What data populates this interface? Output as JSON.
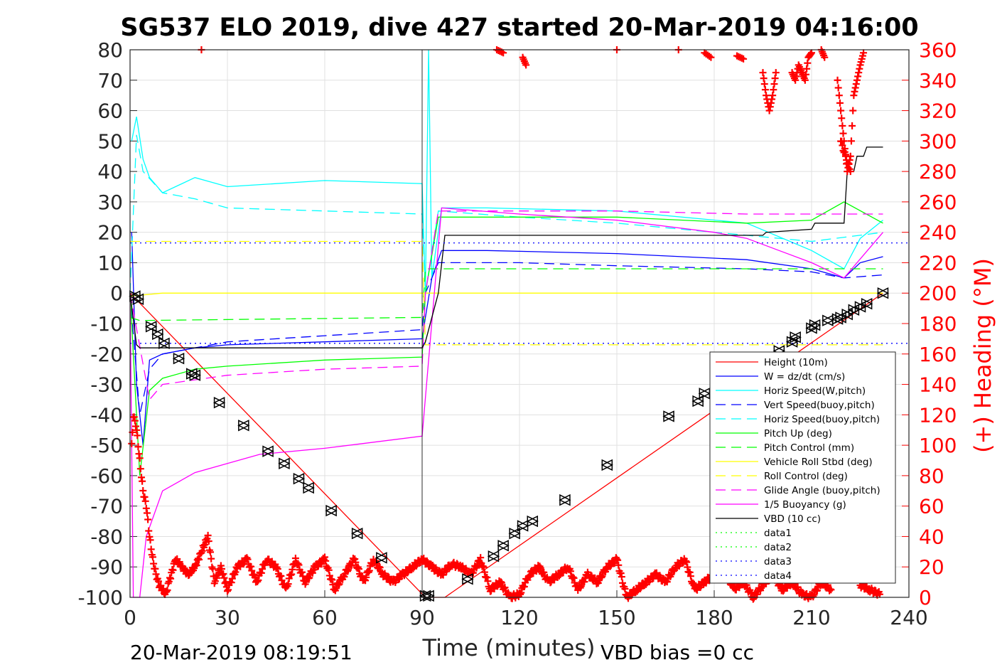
{
  "chart_data": {
    "type": "line",
    "title": "SG537 ELO 2019, dive 427 started 20-Mar-2019 04:16:00",
    "xlabel": "Time (minutes)",
    "ylabel_right": "(+) Heading (°M)",
    "footer_left": "20-Mar-2019 08:19:51",
    "footer_right": "VBD bias =0 cc",
    "xlim": [
      0,
      240
    ],
    "ylim": [
      -100,
      80
    ],
    "ylim_right": [
      0,
      360
    ],
    "xticks": [
      0,
      30,
      60,
      90,
      120,
      150,
      180,
      210,
      240
    ],
    "yticks": [
      80,
      70,
      60,
      50,
      40,
      30,
      20,
      10,
      0,
      -10,
      -20,
      -30,
      -40,
      -50,
      -60,
      -70,
      -80,
      -90,
      -100
    ],
    "yticks_right": [
      360,
      340,
      320,
      300,
      280,
      260,
      240,
      220,
      200,
      180,
      160,
      140,
      120,
      100,
      80,
      60,
      40,
      20,
      0
    ],
    "grid": true,
    "legend_position": "lower-right",
    "series": [
      {
        "name": "Height (10m)",
        "color": "#ff0000",
        "style": "solid",
        "x": [
          0,
          91,
          97,
          232
        ],
        "y": [
          0,
          -100,
          -100,
          0
        ]
      },
      {
        "name": "W = dz/dt (cm/s)",
        "color": "#0000ff",
        "style": "solid",
        "x": [
          0.5,
          2,
          4,
          6,
          10,
          20,
          30,
          60,
          90,
          91,
          93,
          96,
          110,
          150,
          190,
          210,
          220,
          225,
          232
        ],
        "y": [
          20,
          -30,
          -50,
          -22,
          -20,
          -18,
          -17,
          -16,
          -15,
          -8,
          5,
          14,
          14,
          13,
          11,
          8,
          5,
          10,
          12
        ]
      },
      {
        "name": "Horiz Speed(W,pitch)",
        "color": "#00ffff",
        "style": "solid",
        "x": [
          0.5,
          2,
          4,
          6,
          10,
          20,
          30,
          60,
          90,
          91,
          92,
          93,
          96,
          110,
          150,
          190,
          210,
          220,
          225,
          232
        ],
        "y": [
          50,
          58,
          44,
          38,
          33,
          38,
          35,
          37,
          36,
          0,
          80,
          5,
          28,
          28,
          27,
          23,
          14,
          8,
          18,
          24
        ]
      },
      {
        "name": "Vert Speed(buoy,pitch)",
        "color": "#0000ff",
        "style": "dashed",
        "x": [
          0,
          3,
          6,
          10,
          20,
          30,
          60,
          90,
          91,
          95,
          120,
          150,
          190,
          210,
          220,
          232
        ],
        "y": [
          0,
          -40,
          -25,
          -20,
          -18,
          -16,
          -14,
          -12,
          0,
          10,
          10,
          9,
          8,
          7,
          5,
          6
        ]
      },
      {
        "name": "Horiz Speed(buoy,pitch)",
        "color": "#00ffff",
        "style": "dashed",
        "x": [
          0,
          2,
          4,
          10,
          20,
          30,
          60,
          90,
          91,
          95,
          120,
          150,
          190,
          210,
          232
        ],
        "y": [
          0,
          52,
          40,
          33,
          31,
          28,
          27,
          26,
          0,
          27,
          25,
          23,
          19,
          17,
          20
        ]
      },
      {
        "name": "Pitch Up (deg)",
        "color": "#00ff00",
        "style": "solid",
        "x": [
          0,
          3,
          6,
          10,
          20,
          30,
          60,
          90,
          91,
          95,
          120,
          150,
          190,
          210,
          220,
          232
        ],
        "y": [
          0,
          -60,
          -32,
          -28,
          -25,
          -24,
          -22,
          -21,
          0,
          25,
          25,
          25,
          23,
          24,
          30,
          23
        ]
      },
      {
        "name": "Pitch Control (mm)",
        "color": "#00ff00",
        "style": "dashed",
        "x": [
          0,
          3,
          90,
          91,
          95,
          232
        ],
        "y": [
          -8,
          -9,
          -8,
          8,
          8,
          8
        ]
      },
      {
        "name": "Vehicle Roll Stbd (deg)",
        "color": "#ffff00",
        "style": "solid",
        "x": [
          0,
          10,
          90,
          95,
          232
        ],
        "y": [
          -1,
          0,
          0,
          0,
          0
        ]
      },
      {
        "name": "Roll Control (deg)",
        "color": "#ffff00",
        "style": "dashed",
        "x": [
          0,
          90,
          91,
          232
        ],
        "y": [
          17,
          17,
          -17,
          -17
        ]
      },
      {
        "name": "Glide Angle (buoy,pitch)",
        "color": "#ff00ff",
        "style": "dashed",
        "x": [
          0,
          6,
          10,
          30,
          60,
          90,
          91,
          95,
          120,
          150,
          190,
          210,
          232
        ],
        "y": [
          0,
          -35,
          -30,
          -27,
          -25,
          -24,
          0,
          27,
          27,
          27,
          26,
          26,
          26
        ]
      },
      {
        "name": "1/5 Buoyancy (g)",
        "color": "#ff00ff",
        "style": "solid",
        "x": [
          0,
          1,
          3,
          5,
          10,
          20,
          40,
          60,
          90,
          96,
          120,
          150,
          180,
          190,
          200,
          210,
          220,
          232
        ],
        "y": [
          0,
          -100,
          -100,
          -80,
          -65,
          -59,
          -53,
          -51,
          -47,
          28,
          26,
          24,
          20,
          18,
          14,
          10,
          5,
          20
        ]
      },
      {
        "name": "VBD (10 cc)",
        "color": "#000000",
        "style": "solid",
        "x": [
          0,
          2,
          3,
          90,
          91,
          95,
          97,
          195,
          196,
          210,
          211,
          220,
          221,
          223,
          224,
          226,
          227,
          232
        ],
        "y": [
          0,
          -17,
          -18,
          -18,
          -16,
          0,
          19,
          19,
          20,
          21,
          23,
          23,
          40,
          40,
          45,
          45,
          48,
          48
        ]
      },
      {
        "name": "data1",
        "color": "#00ff00",
        "style": "dotted",
        "x": [],
        "y": []
      },
      {
        "name": "data2",
        "color": "#00ff00",
        "style": "dotted",
        "x": [],
        "y": []
      },
      {
        "name": "data3",
        "color": "#0000ff",
        "style": "dotted",
        "x": [
          0,
          240
        ],
        "y": [
          16.5,
          16.5
        ]
      },
      {
        "name": "data4",
        "color": "#0000ff",
        "style": "dotted",
        "x": [
          0,
          240
        ],
        "y": [
          -16.5,
          -16.5
        ]
      }
    ],
    "vertical_lines": [
      {
        "x": 90,
        "color": "#000000"
      }
    ],
    "heading_points": {
      "axis": "right",
      "color": "#ff0000",
      "marker": "+",
      "x": [
        0.5,
        1,
        1.5,
        2,
        3,
        4,
        5,
        6,
        7,
        8,
        9,
        10,
        11,
        12,
        14,
        16,
        18,
        20,
        22,
        24,
        26,
        28,
        30,
        33,
        36,
        39,
        42,
        45,
        48,
        51,
        54,
        57,
        60,
        63,
        66,
        69,
        72,
        75,
        78,
        81,
        84,
        87,
        90,
        93,
        96,
        99,
        102,
        105,
        108,
        111,
        114,
        117,
        120,
        123,
        126,
        129,
        132,
        135,
        138,
        141,
        144,
        147,
        150,
        153,
        156,
        159,
        162,
        165,
        168,
        171,
        174,
        177,
        180,
        183,
        186,
        189,
        192,
        195,
        198,
        201,
        204,
        207,
        210,
        213,
        216,
        219,
        222,
        225,
        228,
        231
      ],
      "y": [
        100,
        120,
        115,
        110,
        90,
        70,
        60,
        40,
        25,
        15,
        8,
        5,
        2,
        10,
        25,
        20,
        15,
        20,
        30,
        40,
        10,
        20,
        5,
        20,
        25,
        10,
        25,
        20,
        5,
        25,
        10,
        20,
        25,
        5,
        15,
        25,
        10,
        25,
        15,
        10,
        15,
        20,
        25,
        20,
        15,
        22,
        20,
        15,
        25,
        5,
        10,
        0,
        2,
        15,
        20,
        10,
        15,
        20,
        5,
        15,
        10,
        20,
        25,
        0,
        5,
        10,
        15,
        10,
        20,
        25,
        5,
        10,
        15,
        20,
        5,
        10,
        0,
        8,
        15,
        5,
        10,
        2,
        0,
        10,
        5,
        300,
        280,
        8,
        5,
        2
      ]
    },
    "heading_top": {
      "x": [
        22,
        113,
        115,
        121,
        122,
        150,
        169,
        177,
        179,
        187,
        189,
        195,
        196,
        197,
        198,
        199,
        204,
        205,
        206,
        207,
        208,
        209,
        210,
        213,
        214,
        218,
        219,
        220,
        221,
        222,
        223,
        224,
        225,
        226
      ],
      "y": [
        360,
        360,
        358,
        355,
        350,
        360,
        360,
        358,
        355,
        356,
        354,
        345,
        330,
        320,
        330,
        345,
        345,
        340,
        350,
        345,
        340,
        355,
        358,
        360,
        355,
        340,
        320,
        300,
        280,
        290,
        330,
        340,
        350,
        358
      ]
    },
    "markers": {
      "type": "triangle-pairs",
      "color": "#000000",
      "x": [
        1.5,
        2.5,
        6.5,
        8.5,
        10.5,
        15,
        19,
        20,
        27.5,
        35,
        42.5,
        47.5,
        52,
        55,
        62,
        70,
        77.5,
        91,
        92,
        104,
        112,
        115,
        118.5,
        121,
        124,
        134,
        147,
        166,
        175,
        177,
        200,
        204,
        205,
        210,
        211,
        215,
        218,
        219,
        221,
        223,
        225,
        227,
        232
      ],
      "y": [
        -1,
        -2,
        -11,
        -13.5,
        -16.5,
        -21.5,
        -26.5,
        -27,
        -36,
        -43.5,
        -52,
        -56,
        -61,
        -64,
        -71.5,
        -79,
        -87,
        -99.5,
        -99.5,
        -94,
        -86.5,
        -83,
        -79,
        -76.5,
        -75,
        -68,
        -56.5,
        -40.5,
        -35.5,
        -33,
        -19,
        -16,
        -14.5,
        -11.5,
        -10.5,
        -9,
        -8.5,
        -8,
        -7,
        -5.5,
        -4.5,
        -3.5,
        0
      ]
    }
  }
}
